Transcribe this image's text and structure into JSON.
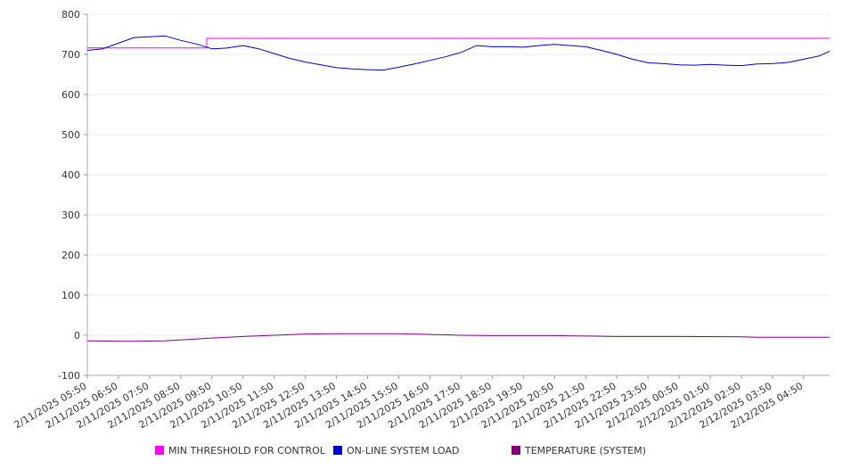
{
  "chart_data": {
    "type": "line",
    "title": "",
    "xlabel": "",
    "ylabel": "",
    "ylim": [
      -100,
      800
    ],
    "y_ticks": [
      "800",
      "700",
      "600",
      "500",
      "400",
      "300",
      "200",
      "100",
      "0",
      "-100"
    ],
    "x_ticks": [
      "2/11/2025 05:50",
      "2/11/2025 06:50",
      "2/11/2025 07:50",
      "2/11/2025 08:50",
      "2/11/2025 09:50",
      "2/11/2025 10:50",
      "2/11/2025 11:50",
      "2/11/2025 12:50",
      "2/11/2025 13:50",
      "2/11/2025 14:50",
      "2/11/2025 15:50",
      "2/11/2025 16:50",
      "2/11/2025 17:50",
      "2/11/2025 18:50",
      "2/11/2025 19:50",
      "2/11/2025 20:50",
      "2/11/2025 21:50",
      "2/11/2025 22:50",
      "2/11/2025 23:50",
      "2/12/2025 00:50",
      "2/12/2025 01:50",
      "2/12/2025 02:50",
      "2/12/2025 03:50",
      "2/12/2025 04:50"
    ],
    "xlim": [
      "2/11/2025 05:50",
      "2/12/2025 05:40"
    ],
    "grid": true,
    "legend_position": "bottom",
    "series": [
      {
        "name": "MIN THRESHOLD FOR CONTROL",
        "color": "#ff00ff",
        "points": [
          [
            "2/11/2025 05:50",
            716
          ],
          [
            "2/11/2025 09:40",
            716
          ],
          [
            "2/11/2025 09:40",
            740
          ],
          [
            "2/12/2025 05:40",
            740
          ]
        ]
      },
      {
        "name": "ON-LINE SYSTEM LOAD",
        "color": "#0000cc",
        "points": [
          [
            "2/11/2025 05:50",
            710
          ],
          [
            "2/11/2025 06:20",
            714
          ],
          [
            "2/11/2025 06:50",
            728
          ],
          [
            "2/11/2025 07:20",
            742
          ],
          [
            "2/11/2025 07:50",
            744
          ],
          [
            "2/11/2025 08:20",
            746
          ],
          [
            "2/11/2025 08:50",
            735
          ],
          [
            "2/11/2025 09:20",
            726
          ],
          [
            "2/11/2025 09:50",
            714
          ],
          [
            "2/11/2025 10:20",
            716
          ],
          [
            "2/11/2025 10:50",
            722
          ],
          [
            "2/11/2025 11:20",
            714
          ],
          [
            "2/11/2025 11:50",
            702
          ],
          [
            "2/11/2025 12:20",
            690
          ],
          [
            "2/11/2025 12:50",
            681
          ],
          [
            "2/11/2025 13:20",
            674
          ],
          [
            "2/11/2025 13:50",
            667
          ],
          [
            "2/11/2025 14:20",
            664
          ],
          [
            "2/11/2025 14:50",
            662
          ],
          [
            "2/11/2025 15:20",
            661
          ],
          [
            "2/11/2025 15:50",
            668
          ],
          [
            "2/11/2025 16:20",
            676
          ],
          [
            "2/11/2025 16:50",
            685
          ],
          [
            "2/11/2025 17:20",
            694
          ],
          [
            "2/11/2025 17:50",
            705
          ],
          [
            "2/11/2025 18:20",
            722
          ],
          [
            "2/11/2025 18:50",
            719
          ],
          [
            "2/11/2025 19:20",
            719
          ],
          [
            "2/11/2025 19:50",
            718
          ],
          [
            "2/11/2025 20:20",
            722
          ],
          [
            "2/11/2025 20:50",
            725
          ],
          [
            "2/11/2025 21:20",
            722
          ],
          [
            "2/11/2025 21:50",
            719
          ],
          [
            "2/11/2025 22:20",
            710
          ],
          [
            "2/11/2025 22:50",
            700
          ],
          [
            "2/11/2025 23:20",
            688
          ],
          [
            "2/11/2025 23:50",
            679
          ],
          [
            "2/12/2025 00:20",
            677
          ],
          [
            "2/12/2025 00:50",
            674
          ],
          [
            "2/12/2025 01:20",
            673
          ],
          [
            "2/12/2025 01:50",
            675
          ],
          [
            "2/12/2025 02:20",
            673
          ],
          [
            "2/12/2025 02:50",
            672
          ],
          [
            "2/12/2025 03:20",
            676
          ],
          [
            "2/12/2025 03:50",
            677
          ],
          [
            "2/12/2025 04:20",
            680
          ],
          [
            "2/12/2025 04:50",
            688
          ],
          [
            "2/12/2025 05:20",
            696
          ],
          [
            "2/12/2025 05:40",
            708
          ]
        ]
      },
      {
        "name": "TEMPERATURE (SYSTEM)",
        "color": "#800080",
        "points": [
          [
            "2/11/2025 05:50",
            -14
          ],
          [
            "2/11/2025 07:20",
            -15
          ],
          [
            "2/11/2025 08:20",
            -14
          ],
          [
            "2/11/2025 09:50",
            -7
          ],
          [
            "2/11/2025 10:50",
            -3
          ],
          [
            "2/11/2025 11:50",
            0
          ],
          [
            "2/11/2025 12:50",
            3
          ],
          [
            "2/11/2025 13:50",
            4
          ],
          [
            "2/11/2025 14:50",
            4
          ],
          [
            "2/11/2025 15:50",
            4
          ],
          [
            "2/11/2025 16:50",
            2
          ],
          [
            "2/11/2025 17:50",
            0
          ],
          [
            "2/11/2025 18:50",
            -1
          ],
          [
            "2/11/2025 20:50",
            -1
          ],
          [
            "2/11/2025 21:50",
            -2
          ],
          [
            "2/11/2025 22:50",
            -3
          ],
          [
            "2/12/2025 00:50",
            -3
          ],
          [
            "2/12/2025 02:50",
            -4
          ],
          [
            "2/12/2025 03:20",
            -5
          ],
          [
            "2/12/2025 05:40",
            -5
          ]
        ]
      }
    ]
  },
  "legend": {
    "items": [
      {
        "label": "MIN THRESHOLD FOR CONTROL",
        "color": "#ff00ff"
      },
      {
        "label": "ON-LINE SYSTEM LOAD",
        "color": "#0000cc"
      },
      {
        "label": "TEMPERATURE (SYSTEM)",
        "color": "#800080"
      }
    ]
  }
}
